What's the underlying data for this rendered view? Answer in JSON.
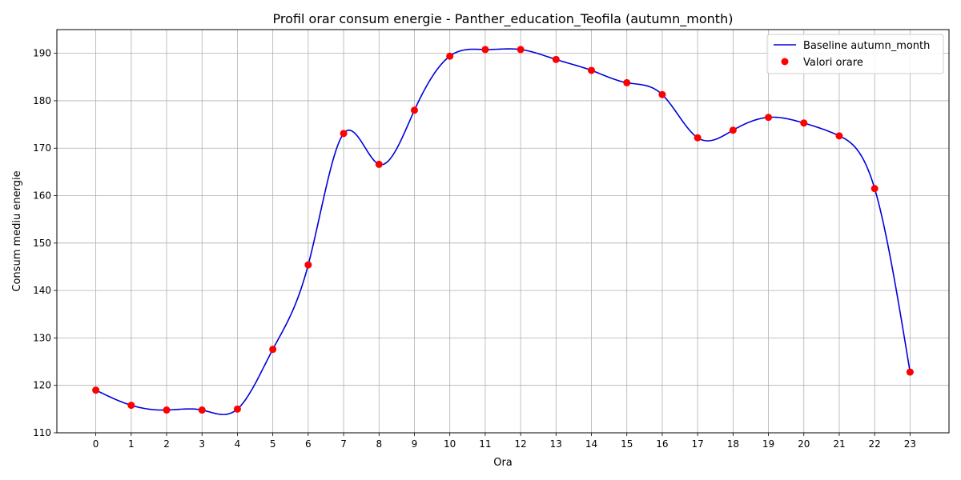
{
  "chart_data": {
    "type": "line",
    "title": "Profil orar consum energie - Panther_education_Teofila (autumn_month)",
    "xlabel": "Ora",
    "ylabel": "Consum mediu energie",
    "x": [
      0,
      1,
      2,
      3,
      4,
      5,
      6,
      7,
      8,
      9,
      10,
      11,
      12,
      13,
      14,
      15,
      16,
      17,
      18,
      19,
      20,
      21,
      22,
      23
    ],
    "x_tick_labels": [
      "0",
      "1",
      "2",
      "3",
      "4",
      "5",
      "6",
      "7",
      "8",
      "9",
      "10",
      "11",
      "12",
      "13",
      "14",
      "15",
      "16",
      "17",
      "18",
      "19",
      "20",
      "21",
      "22",
      "23"
    ],
    "xlim": [
      -1.1,
      24.1
    ],
    "ylim": [
      110,
      195
    ],
    "y_ticks": [
      110,
      120,
      130,
      140,
      150,
      160,
      170,
      180,
      190
    ],
    "y_tick_labels": [
      "110",
      "120",
      "130",
      "140",
      "150",
      "160",
      "170",
      "180",
      "190"
    ],
    "grid": true,
    "legend_position": "top-right",
    "series": [
      {
        "name": "Baseline autumn_month",
        "kind": "smooth-line",
        "color": "#0000dd",
        "values": [
          119.0,
          115.8,
          114.8,
          114.8,
          115.0,
          127.6,
          145.4,
          173.1,
          166.6,
          178.0,
          189.4,
          190.8,
          190.8,
          188.7,
          186.4,
          183.8,
          181.3,
          172.2,
          173.8,
          176.5,
          175.3,
          172.6,
          161.5,
          122.8
        ]
      },
      {
        "name": "Valori orare",
        "kind": "scatter",
        "color": "#ff0000",
        "values": [
          119.0,
          115.8,
          114.8,
          114.8,
          115.0,
          127.6,
          145.4,
          173.1,
          166.6,
          178.0,
          189.4,
          190.8,
          190.8,
          188.7,
          186.4,
          183.8,
          181.3,
          172.2,
          173.8,
          176.5,
          175.3,
          172.6,
          161.5,
          122.8
        ]
      }
    ]
  }
}
